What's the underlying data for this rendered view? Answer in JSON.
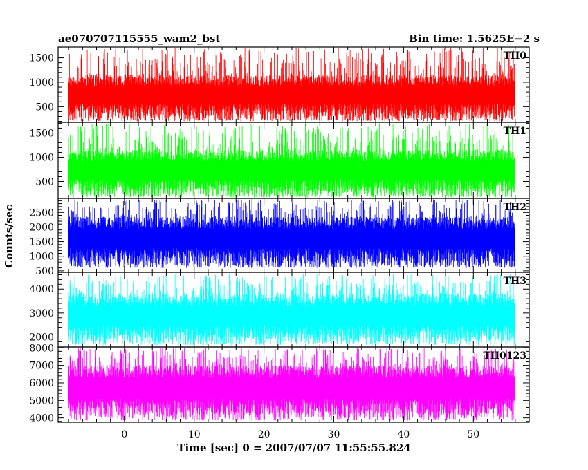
{
  "header": {
    "left_title": "ae070707115555_wam2_bst",
    "right_title": "Bin time: 1.5625E−2 s"
  },
  "chart_data": {
    "type": "line",
    "title": "ae070707115555_wam2_bst",
    "subtitle": "Bin time: 1.5625E−2 s",
    "xlabel": "Time [sec] 0 = 2007/07/07 11:55:55.824",
    "ylabel": "Counts/sec",
    "xlim": [
      -9.5,
      58
    ],
    "x_ticks": [
      0,
      10,
      20,
      30,
      40,
      50
    ],
    "x_minor_step": 2,
    "data_x_range": [
      -8,
      56
    ],
    "bin_time_sec": 0.015625,
    "grid": false,
    "panels": [
      {
        "name": "TH0",
        "color": "#ff0000",
        "ylim": [
          180,
          1720
        ],
        "y_ticks": [
          500,
          1000,
          1500
        ],
        "y_minor_step": 100,
        "typical_range": [
          250,
          1150
        ],
        "min_observed": 200,
        "max_observed": 1700
      },
      {
        "name": "TH1",
        "color": "#00ff00",
        "ylim": [
          150,
          1720
        ],
        "y_ticks": [
          500,
          1000,
          1500
        ],
        "y_minor_step": 100,
        "typical_range": [
          220,
          1150
        ],
        "min_observed": 170,
        "max_observed": 1700
      },
      {
        "name": "TH2",
        "color": "#0000ff",
        "ylim": [
          450,
          2980
        ],
        "y_ticks": [
          500,
          1000,
          1500,
          2000,
          2500
        ],
        "y_minor_step": 100,
        "typical_range": [
          700,
          2350
        ],
        "min_observed": 600,
        "max_observed": 2950
      },
      {
        "name": "TH3",
        "color": "#00ffff",
        "ylim": [
          1580,
          4700
        ],
        "y_ticks": [
          2000,
          3000,
          4000
        ],
        "y_minor_step": 200,
        "typical_range": [
          1800,
          3800
        ],
        "min_observed": 1650,
        "max_observed": 4650
      },
      {
        "name": "TH0123",
        "color": "#ff00ff",
        "ylim": [
          3750,
          8050
        ],
        "y_ticks": [
          4000,
          5000,
          6000,
          7000,
          8000
        ],
        "y_minor_step": 200,
        "typical_range": [
          4100,
          7000
        ],
        "min_observed": 3850,
        "max_observed": 8000
      }
    ]
  }
}
